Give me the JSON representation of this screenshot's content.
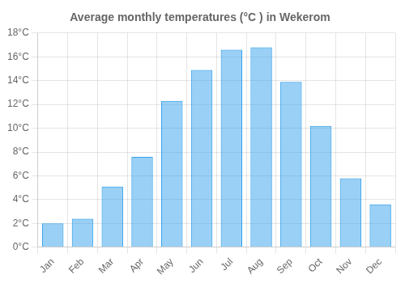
{
  "chart_data": {
    "type": "bar",
    "title": "Average monthly temperatures (°C ) in Wekerom",
    "categories": [
      "Jan",
      "Feb",
      "Mar",
      "Apr",
      "May",
      "Jun",
      "Jul",
      "Aug",
      "Sep",
      "Oct",
      "Nov",
      "Dec"
    ],
    "values": [
      2.0,
      2.4,
      5.1,
      7.6,
      12.3,
      14.9,
      16.6,
      16.8,
      13.9,
      10.2,
      5.8,
      3.6
    ],
    "ylim": [
      0,
      18
    ],
    "yticks": [
      {
        "value": 0,
        "label": "0°C"
      },
      {
        "value": 2,
        "label": "2°C"
      },
      {
        "value": 4,
        "label": "4°C"
      },
      {
        "value": 6,
        "label": "6°C"
      },
      {
        "value": 8,
        "label": "8°C"
      },
      {
        "value": 10,
        "label": "10°C"
      },
      {
        "value": 12,
        "label": "12°C"
      },
      {
        "value": 14,
        "label": "14°C"
      },
      {
        "value": 16,
        "label": "16°C"
      },
      {
        "value": 18,
        "label": "18°C"
      }
    ],
    "grid": true
  }
}
